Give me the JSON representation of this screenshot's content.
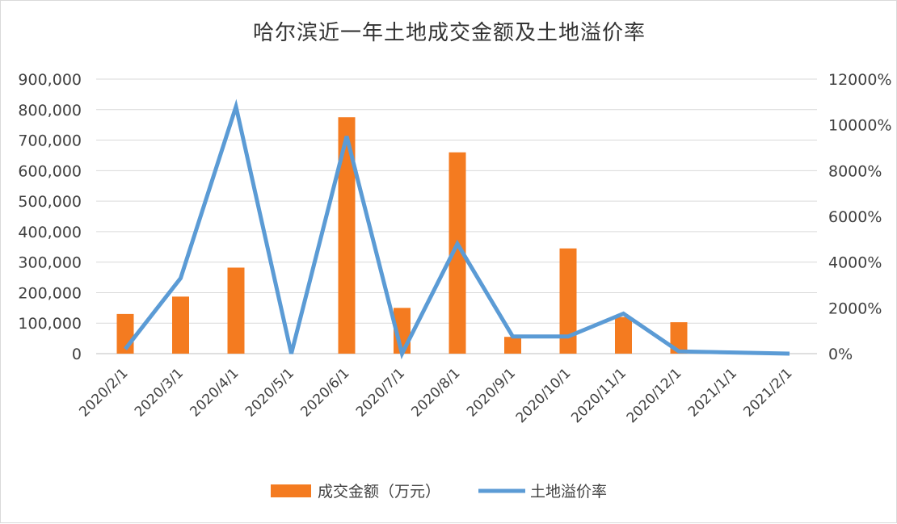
{
  "chart_data": {
    "type": "bar+line",
    "title": "哈尔滨近一年土地成交金额及土地溢价率",
    "categories": [
      "2020/2/1",
      "2020/3/1",
      "2020/4/1",
      "2020/5/1",
      "2020/6/1",
      "2020/7/1",
      "2020/8/1",
      "2020/9/1",
      "2020/10/1",
      "2020/11/1",
      "2020/12/1",
      "2021/1/1",
      "2021/2/1"
    ],
    "series": [
      {
        "name": "成交金额（万元）",
        "type": "bar",
        "axis": "left",
        "color": "#f47b20",
        "values": [
          130000,
          187000,
          282000,
          0,
          775000,
          150000,
          660000,
          55000,
          345000,
          120000,
          103000,
          0,
          0
        ]
      },
      {
        "name": "土地溢价率",
        "type": "line",
        "axis": "right",
        "color": "#5b9bd5",
        "values": [
          200,
          3300,
          10800,
          0,
          9500,
          0,
          4800,
          750,
          750,
          1750,
          100,
          50,
          0
        ]
      }
    ],
    "y_left": {
      "min": 0,
      "max": 900000,
      "ticks": [
        0,
        100000,
        200000,
        300000,
        400000,
        500000,
        600000,
        700000,
        800000,
        900000
      ],
      "tick_labels": [
        "0",
        "100,000",
        "200,000",
        "300,000",
        "400,000",
        "500,000",
        "600,000",
        "700,000",
        "800,000",
        "900,000"
      ]
    },
    "y_right": {
      "min": 0,
      "max": 12000,
      "ticks": [
        0,
        2000,
        4000,
        6000,
        8000,
        10000,
        12000
      ],
      "tick_labels": [
        "0%",
        "2000%",
        "4000%",
        "6000%",
        "8000%",
        "10000%",
        "12000%"
      ]
    },
    "grid": true,
    "legend_position": "bottom"
  }
}
